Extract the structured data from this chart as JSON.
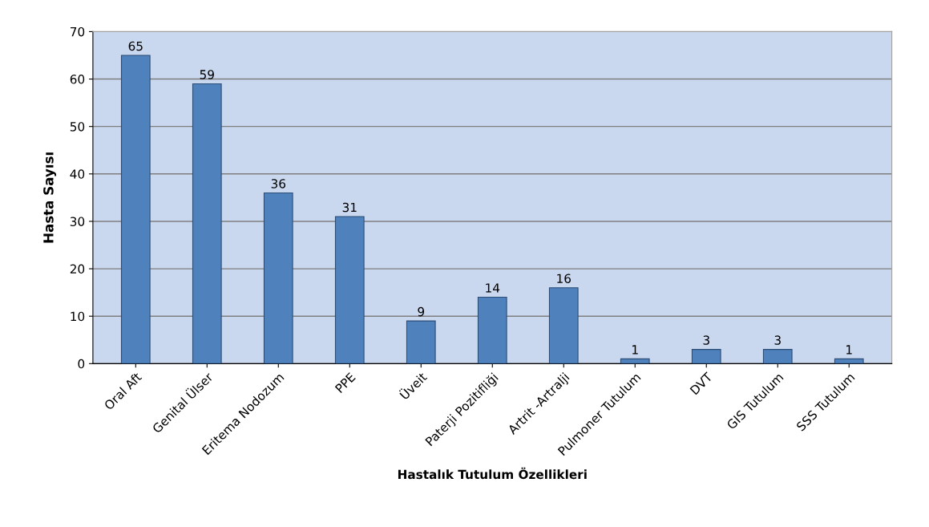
{
  "chart_data": {
    "type": "bar",
    "xlabel": "Hastalık Tutulum Özellikleri",
    "ylabel": "Hasta Sayısı",
    "categories": [
      "Oral Aft",
      "Genital Ülser",
      "Eritema Nodozum",
      "PPE",
      "Üveit",
      "Paterji Pozitifliği",
      "Artrit -Artralji",
      "Pulmoner Tutulum",
      "DVT",
      "GIS Tutulum",
      "SSS Tutulum"
    ],
    "values": [
      65,
      59,
      36,
      31,
      9,
      14,
      16,
      1,
      3,
      3,
      1
    ],
    "color": "#4f81bd",
    "ylim": [
      0,
      70
    ],
    "yticks": [
      0,
      10,
      20,
      30,
      40,
      50,
      60,
      70
    ],
    "grid": "y",
    "data_labels": true
  }
}
